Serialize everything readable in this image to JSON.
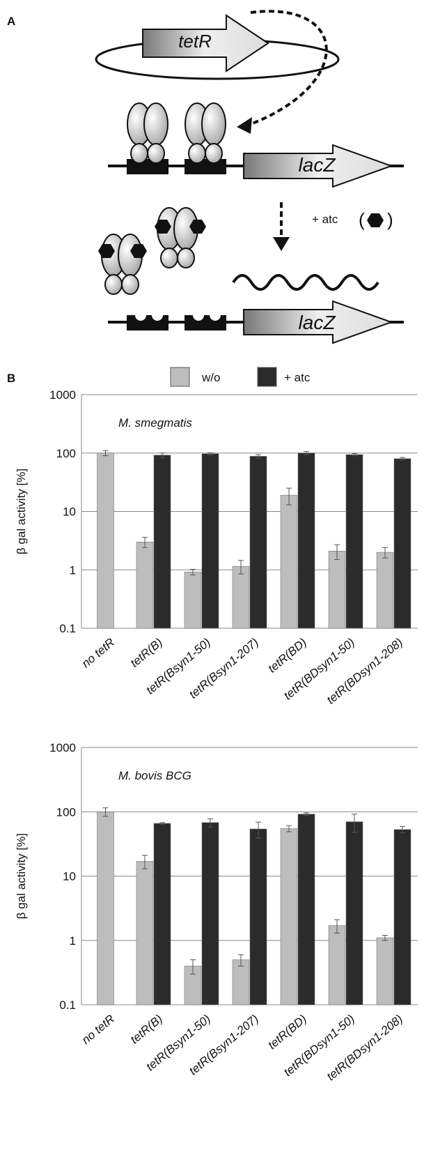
{
  "panel_labels": [
    "A",
    "B"
  ],
  "diagram": {
    "gene_repressor": "tetR",
    "gene_reporter": [
      "lacZ",
      "lacZ"
    ],
    "inducer": "+ atc"
  },
  "chart_data": [
    {
      "type": "bar",
      "title": "M. smegmatis",
      "y_label": "β gal activity [%]",
      "log": true,
      "grid": true,
      "ylim": [
        0.1,
        1000
      ],
      "yticks": [
        0.1,
        1,
        10,
        100,
        1000
      ],
      "categories": [
        "no tetR",
        "tetR(B)",
        "tetR(Bsyn1-50)",
        "tetR(Bsyn1-207)",
        "tetR(BD)",
        "tetR(BDsyn1-50)",
        "tetR(BDsyn1-208)"
      ],
      "series": [
        {
          "name": "w/o",
          "color": "#bdbdbd",
          "values": [
            100,
            3.0,
            0.92,
            1.15,
            19,
            2.1,
            2.0
          ],
          "errors": [
            10,
            0.6,
            0.1,
            0.3,
            6,
            0.6,
            0.4
          ]
        },
        {
          "name": "+ atc",
          "color": "#2b2b2b",
          "values": [
            null,
            92,
            97,
            88,
            100,
            94,
            80
          ],
          "errors": [
            null,
            8,
            4,
            6,
            6,
            4,
            4
          ]
        }
      ]
    },
    {
      "type": "bar",
      "title": "M. bovis BCG",
      "y_label": "β gal activity [%]",
      "log": true,
      "grid": true,
      "ylim": [
        0.1,
        1000
      ],
      "yticks": [
        0.1,
        1,
        10,
        100,
        1000
      ],
      "categories": [
        "no tetR",
        "tetR(B)",
        "tetR(Bsyn1-50)",
        "tetR(Bsyn1-207)",
        "tetR(BD)",
        "tetR(BDsyn1-50)",
        "tetR(BDsyn1-208)"
      ],
      "series": [
        {
          "color": "#bdbdbd",
          "values": [
            100,
            17,
            0.4,
            0.5,
            55,
            1.7,
            1.1
          ],
          "errors": [
            15,
            4,
            0.1,
            0.1,
            6,
            0.4,
            0.1
          ]
        },
        {
          "color": "#2b2b2b",
          "values": [
            null,
            66,
            68,
            54,
            92,
            70,
            53
          ],
          "errors": [
            null,
            2,
            10,
            15,
            4,
            22,
            6
          ]
        }
      ]
    }
  ]
}
